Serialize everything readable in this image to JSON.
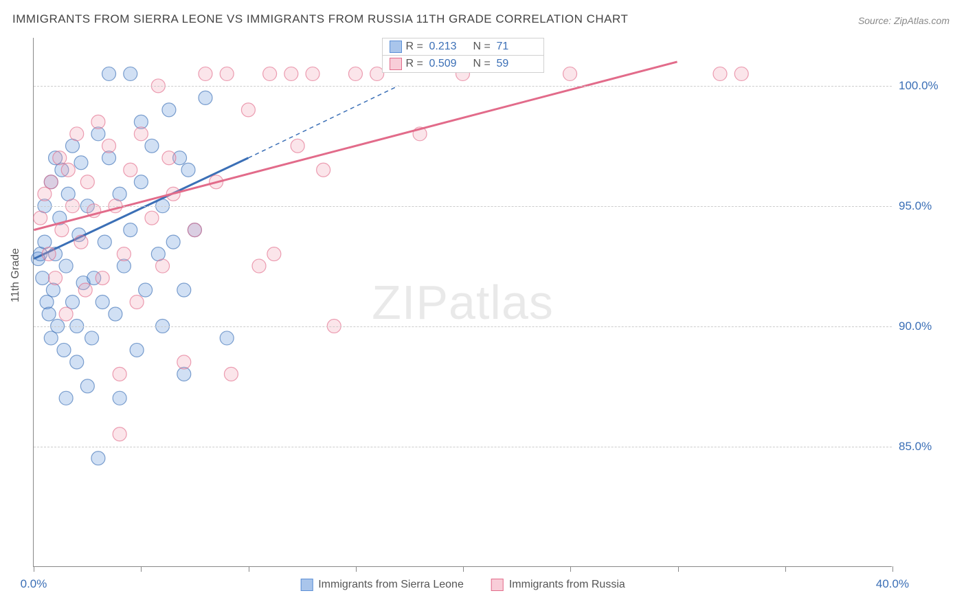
{
  "title": "IMMIGRANTS FROM SIERRA LEONE VS IMMIGRANTS FROM RUSSIA 11TH GRADE CORRELATION CHART",
  "source": "Source: ZipAtlas.com",
  "yaxis_title": "11th Grade",
  "watermark": {
    "bold": "ZIP",
    "light": "atlas"
  },
  "chart": {
    "type": "scatter",
    "xlim": [
      0,
      40
    ],
    "ylim": [
      80,
      102
    ],
    "x_ticks": [
      0,
      5,
      10,
      15,
      20,
      25,
      30,
      35,
      40
    ],
    "x_tick_labels": {
      "0": "0.0%",
      "40": "40.0%"
    },
    "y_gridlines": [
      85,
      90,
      95,
      100
    ],
    "y_tick_labels": {
      "85": "85.0%",
      "90": "90.0%",
      "95": "95.0%",
      "100": "100.0%"
    },
    "grid_color": "#cccccc",
    "axis_color": "#888888",
    "label_color": "#3b6fb6",
    "label_fontsize": 17,
    "background_color": "#ffffff",
    "marker_radius": 10,
    "marker_fill_opacity": 0.28,
    "marker_stroke_opacity": 0.65,
    "marker_stroke_width": 1.2,
    "series": [
      {
        "name": "Immigrants from Sierra Leone",
        "color": "#5b8fd6",
        "stroke": "#3b6fb6",
        "R": "0.213",
        "N": "71",
        "regression": {
          "x1": 0,
          "y1": 92.8,
          "x2": 10,
          "y2": 97.0,
          "dash_ext_x": 17,
          "dash_ext_y": 100.0,
          "width": 3
        },
        "points": [
          [
            0.2,
            92.8
          ],
          [
            0.3,
            93.0
          ],
          [
            0.4,
            92.0
          ],
          [
            0.5,
            93.5
          ],
          [
            0.5,
            95.0
          ],
          [
            0.6,
            91.0
          ],
          [
            0.7,
            90.5
          ],
          [
            0.8,
            89.5
          ],
          [
            0.8,
            96.0
          ],
          [
            0.9,
            91.5
          ],
          [
            1.0,
            93.0
          ],
          [
            1.0,
            97.0
          ],
          [
            1.1,
            90.0
          ],
          [
            1.2,
            94.5
          ],
          [
            1.3,
            96.5
          ],
          [
            1.4,
            89.0
          ],
          [
            1.5,
            87.0
          ],
          [
            1.5,
            92.5
          ],
          [
            1.6,
            95.5
          ],
          [
            1.8,
            91.0
          ],
          [
            1.8,
            97.5
          ],
          [
            2.0,
            88.5
          ],
          [
            2.0,
            90.0
          ],
          [
            2.1,
            93.8
          ],
          [
            2.2,
            96.8
          ],
          [
            2.3,
            91.8
          ],
          [
            2.5,
            87.5
          ],
          [
            2.5,
            95.0
          ],
          [
            2.7,
            89.5
          ],
          [
            2.8,
            92.0
          ],
          [
            3.0,
            98.0
          ],
          [
            3.0,
            84.5
          ],
          [
            3.2,
            91.0
          ],
          [
            3.3,
            93.5
          ],
          [
            3.5,
            97.0
          ],
          [
            3.5,
            100.5
          ],
          [
            3.8,
            90.5
          ],
          [
            4.0,
            87.0
          ],
          [
            4.0,
            95.5
          ],
          [
            4.2,
            92.5
          ],
          [
            4.5,
            100.5
          ],
          [
            4.5,
            94.0
          ],
          [
            4.8,
            89.0
          ],
          [
            5.0,
            96.0
          ],
          [
            5.0,
            98.5
          ],
          [
            5.2,
            91.5
          ],
          [
            5.5,
            97.5
          ],
          [
            5.8,
            93.0
          ],
          [
            6.0,
            90.0
          ],
          [
            6.0,
            95.0
          ],
          [
            6.3,
            99.0
          ],
          [
            6.5,
            93.5
          ],
          [
            6.8,
            97.0
          ],
          [
            7.0,
            88.0
          ],
          [
            7.0,
            91.5
          ],
          [
            7.2,
            96.5
          ],
          [
            7.5,
            94.0
          ],
          [
            8.0,
            99.5
          ],
          [
            9.0,
            89.5
          ]
        ]
      },
      {
        "name": "Immigrants from Russia",
        "color": "#f2a0b4",
        "stroke": "#e26b8a",
        "R": "0.509",
        "N": "59",
        "regression": {
          "x1": 0,
          "y1": 94.0,
          "x2": 30,
          "y2": 101.0,
          "width": 3
        },
        "points": [
          [
            0.3,
            94.5
          ],
          [
            0.5,
            95.5
          ],
          [
            0.7,
            93.0
          ],
          [
            0.8,
            96.0
          ],
          [
            1.0,
            92.0
          ],
          [
            1.2,
            97.0
          ],
          [
            1.3,
            94.0
          ],
          [
            1.5,
            90.5
          ],
          [
            1.6,
            96.5
          ],
          [
            1.8,
            95.0
          ],
          [
            2.0,
            98.0
          ],
          [
            2.2,
            93.5
          ],
          [
            2.4,
            91.5
          ],
          [
            2.5,
            96.0
          ],
          [
            2.8,
            94.8
          ],
          [
            3.0,
            98.5
          ],
          [
            3.2,
            92.0
          ],
          [
            3.5,
            97.5
          ],
          [
            3.8,
            95.0
          ],
          [
            4.0,
            88.0
          ],
          [
            4.2,
            93.0
          ],
          [
            4.5,
            96.5
          ],
          [
            4.8,
            91.0
          ],
          [
            5.0,
            98.0
          ],
          [
            5.5,
            94.5
          ],
          [
            5.8,
            100.0
          ],
          [
            6.0,
            92.5
          ],
          [
            6.3,
            97.0
          ],
          [
            6.5,
            95.5
          ],
          [
            7.0,
            88.5
          ],
          [
            7.5,
            94.0
          ],
          [
            8.0,
            100.5
          ],
          [
            8.5,
            96.0
          ],
          [
            9.0,
            100.5
          ],
          [
            9.2,
            88.0
          ],
          [
            10.0,
            99.0
          ],
          [
            10.5,
            92.5
          ],
          [
            11.0,
            100.5
          ],
          [
            11.2,
            93.0
          ],
          [
            12.0,
            100.5
          ],
          [
            12.3,
            97.5
          ],
          [
            13.0,
            100.5
          ],
          [
            13.5,
            96.5
          ],
          [
            14.0,
            90.0
          ],
          [
            15.0,
            100.5
          ],
          [
            16.0,
            100.5
          ],
          [
            18.0,
            98.0
          ],
          [
            20.0,
            100.5
          ],
          [
            25.0,
            100.5
          ],
          [
            32.0,
            100.5
          ],
          [
            33.0,
            100.5
          ],
          [
            4.0,
            85.5
          ]
        ]
      }
    ]
  },
  "legend_bottom": [
    {
      "label": "Immigrants from Sierra Leone",
      "fill": "#a9c5eb",
      "stroke": "#5b8fd6"
    },
    {
      "label": "Immigrants from Russia",
      "fill": "#f8cdd8",
      "stroke": "#e26b8a"
    }
  ]
}
